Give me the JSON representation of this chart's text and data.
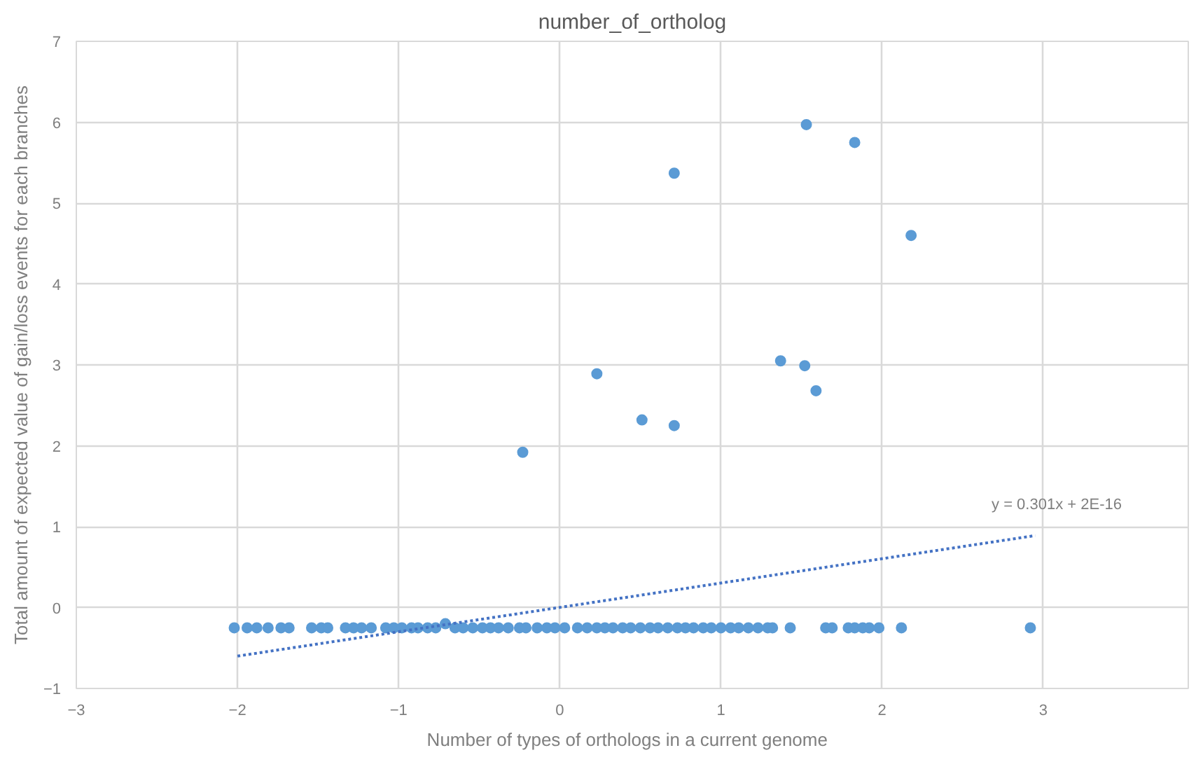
{
  "chart_data": {
    "type": "scatter",
    "title": "number_of_ortholog",
    "xlabel": "Number of types  of  orthologs in a current genome",
    "ylabel": "Total amount of expected value of gain/loss events for each branches",
    "xlim": [
      -3,
      3.9
    ],
    "ylim": [
      -1,
      7
    ],
    "xticks": [
      -3,
      -2,
      -1,
      0,
      1,
      2,
      3
    ],
    "yticks": [
      -1,
      0,
      1,
      2,
      3,
      4,
      5,
      6,
      7
    ],
    "grid": true,
    "marker": "circle",
    "series": [
      {
        "type": "scatter",
        "color": "#5b9bd5",
        "x": [
          -0.23,
          0.23,
          0.51,
          0.71,
          0.71,
          1.37,
          1.52,
          1.59,
          1.53,
          1.83,
          2.18,
          -2.02,
          -1.94,
          -1.88,
          -1.81,
          -1.73,
          -1.68,
          -1.54,
          -1.48,
          -1.44,
          -1.33,
          -1.28,
          -1.23,
          -1.17,
          -1.08,
          -1.03,
          -0.98,
          -0.92,
          -0.88,
          -0.82,
          -0.77,
          -0.71,
          -0.65,
          -0.6,
          -0.54,
          -0.48,
          -0.43,
          -0.38,
          -0.32,
          -0.25,
          -0.21,
          -0.14,
          -0.08,
          -0.03,
          0.03,
          0.11,
          0.17,
          0.23,
          0.28,
          0.33,
          0.39,
          0.44,
          0.5,
          0.56,
          0.61,
          0.67,
          0.73,
          0.78,
          0.83,
          0.89,
          0.94,
          1.0,
          1.06,
          1.11,
          1.17,
          1.23,
          1.29,
          1.32,
          1.43,
          1.65,
          1.69,
          1.79,
          1.83,
          1.88,
          1.92,
          1.98,
          2.12,
          2.92
        ],
        "values": [
          1.92,
          2.89,
          2.32,
          2.25,
          5.37,
          3.05,
          2.99,
          2.68,
          5.97,
          5.75,
          4.6,
          -0.25,
          -0.25,
          -0.25,
          -0.25,
          -0.25,
          -0.25,
          -0.25,
          -0.25,
          -0.25,
          -0.25,
          -0.25,
          -0.25,
          -0.25,
          -0.25,
          -0.25,
          -0.25,
          -0.25,
          -0.25,
          -0.25,
          -0.25,
          -0.2,
          -0.25,
          -0.25,
          -0.25,
          -0.25,
          -0.25,
          -0.25,
          -0.25,
          -0.25,
          -0.25,
          -0.25,
          -0.25,
          -0.25,
          -0.25,
          -0.25,
          -0.25,
          -0.25,
          -0.25,
          -0.25,
          -0.25,
          -0.25,
          -0.25,
          -0.25,
          -0.25,
          -0.25,
          -0.25,
          -0.25,
          -0.25,
          -0.25,
          -0.25,
          -0.25,
          -0.25,
          -0.25,
          -0.25,
          -0.25,
          -0.25,
          -0.25,
          -0.25,
          -0.25,
          -0.25,
          -0.25,
          -0.25,
          -0.25,
          -0.25,
          -0.25,
          -0.25,
          -0.25
        ]
      },
      {
        "type": "line",
        "color": "#4472c4",
        "line_style": "dotted",
        "marker": "none",
        "x": [
          -2.0,
          2.95
        ],
        "values": [
          -0.6,
          0.89
        ]
      }
    ],
    "annotations": [
      "y = 0.301x + 2E-16"
    ]
  }
}
